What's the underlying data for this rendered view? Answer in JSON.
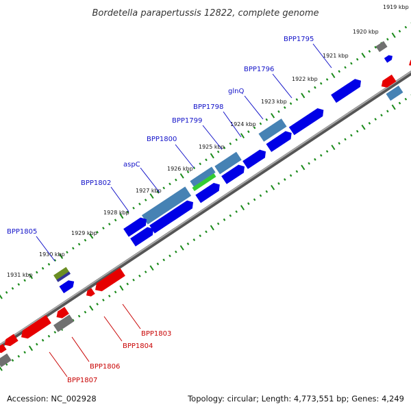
{
  "title": "Bordetella parapertussis 12822, complete genome",
  "footer": {
    "accession": "Accession: NC_002928",
    "topology": "Topology: circular; Length: 4,773,551 bp; Genes: 4,249"
  },
  "ruler_labels": [
    "1919 kbp",
    "1920 kbp",
    "1921 kbp",
    "1922 kbp",
    "1923 kbp",
    "1924 kbp",
    "1925 kbp",
    "1926 kbp",
    "1927 kbp",
    "1928 kbp",
    "1929 kbp",
    "1930 kbp",
    "1931 kbp"
  ],
  "gene_labels_top": [
    "BPP1795",
    "BPP1796",
    "glnQ",
    "BPP1798",
    "BPP1799",
    "BPP1800",
    "aspC",
    "BPP1802",
    "BPP1805"
  ],
  "gene_labels_bottom": [
    "BPP1803",
    "BPP1804",
    "BPP1806",
    "BPP1807"
  ],
  "colors": {
    "forward_gene": "#0000e6",
    "reverse_gene": "#e60000",
    "highlight_gene": "#4682b4",
    "green_gene": "#33cc33",
    "olive_gene": "#6b8e23",
    "gray_gene": "#707070",
    "backbone": "#808080",
    "tick": "#1a8a1a",
    "top_label": "#1010c8",
    "bottom_label": "#c80000"
  }
}
